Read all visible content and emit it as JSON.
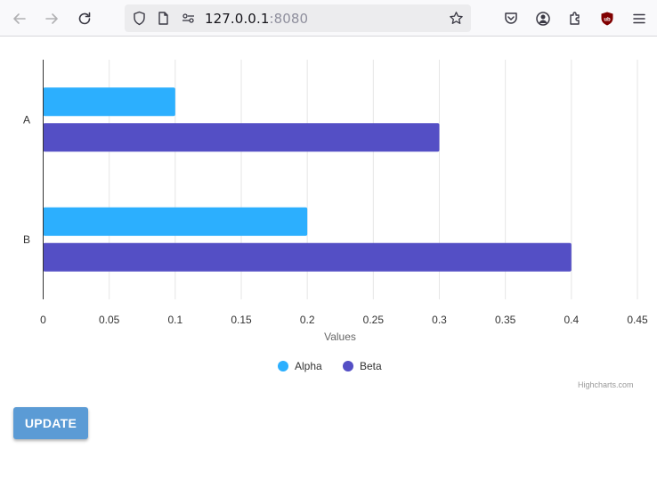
{
  "browser": {
    "url_host": "127.0.0.1",
    "url_port": ":8080",
    "icons": [
      "back-arrow-icon",
      "forward-arrow-icon",
      "reload-icon",
      "shield-icon",
      "page-icon",
      "permissions-icon",
      "bookmark-star-icon",
      "pocket-icon",
      "account-icon",
      "extensions-icon",
      "ublock-icon",
      "menu-icon"
    ]
  },
  "chart_data": {
    "type": "bar",
    "orientation": "horizontal",
    "categories": [
      "A",
      "B"
    ],
    "series": [
      {
        "name": "Alpha",
        "color": "#2caffe",
        "values": [
          0.1,
          0.2
        ]
      },
      {
        "name": "Beta",
        "color": "#544fc5",
        "values": [
          0.3,
          0.4
        ]
      }
    ],
    "xlabel": "Values",
    "xlim": [
      0,
      0.45
    ],
    "xticks": [
      "0",
      "0.05",
      "0.1",
      "0.15",
      "0.2",
      "0.25",
      "0.3",
      "0.35",
      "0.4",
      "0.45"
    ],
    "grid": true,
    "legend": "bottom-center",
    "credits": "Highcharts.com"
  },
  "update_button": {
    "label": "UPDATE"
  }
}
